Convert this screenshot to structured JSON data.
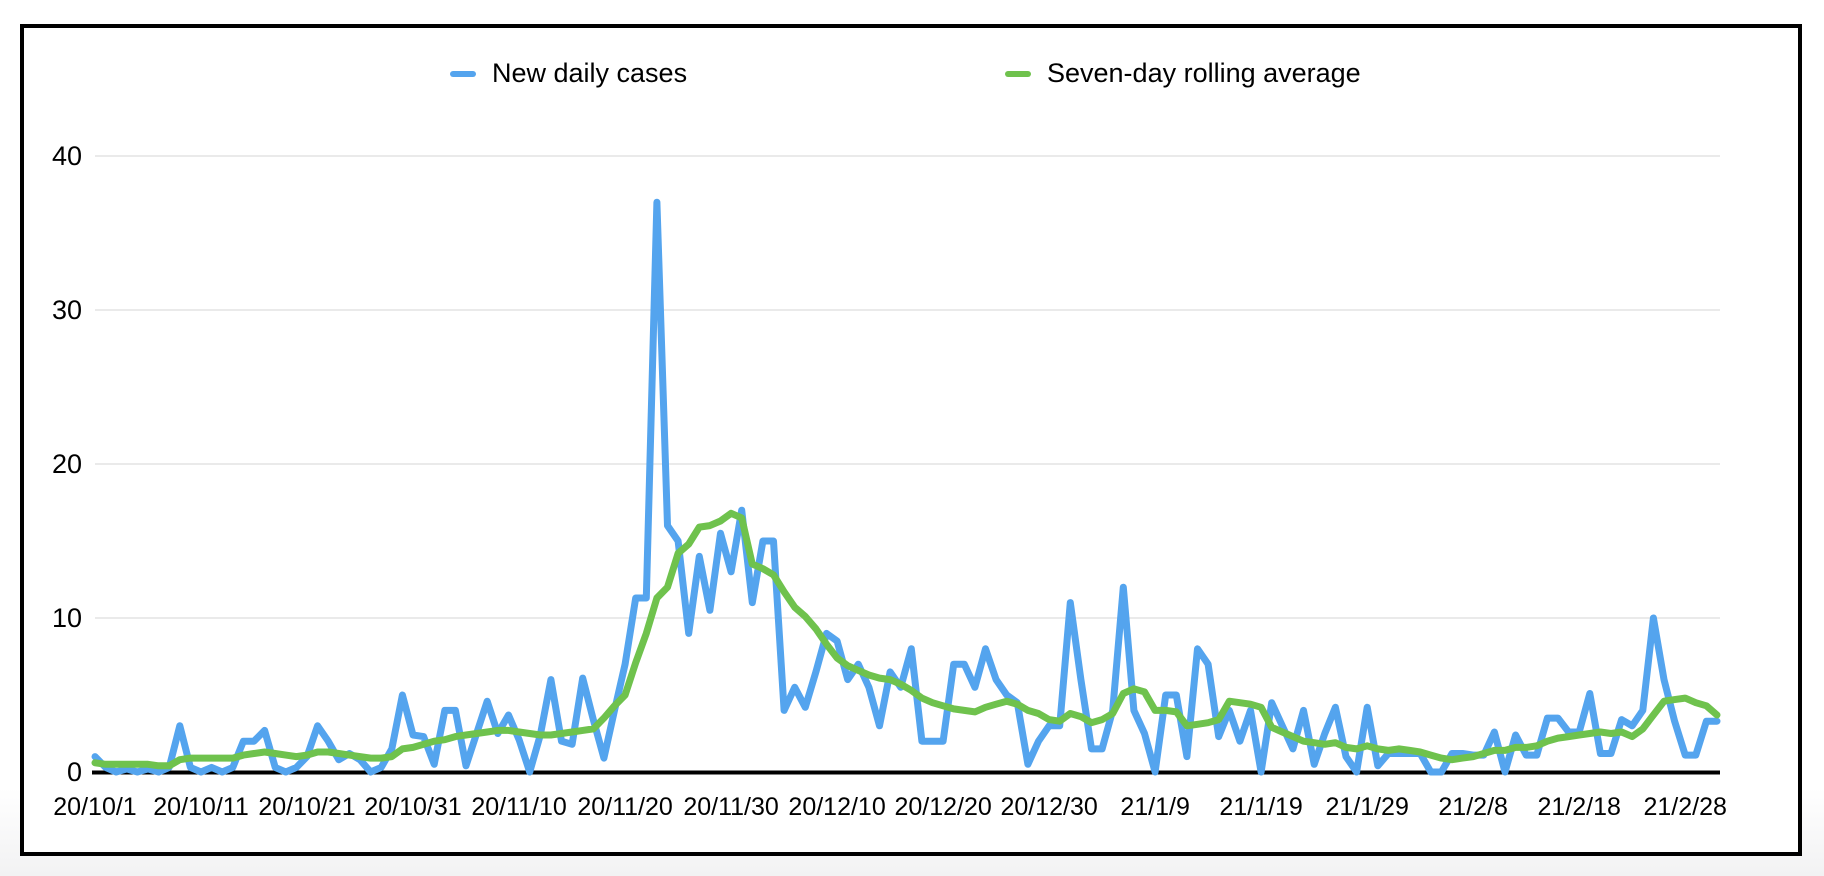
{
  "chart_data": {
    "type": "line",
    "title": "",
    "xlabel": "",
    "ylabel": "",
    "x_start": "20/10/1",
    "x_end": "21/3/3",
    "x_tick_every_days": 10,
    "x_tick_labels": [
      "20/10/1",
      "20/10/11",
      "20/10/21",
      "20/10/31",
      "20/11/10",
      "20/11/20",
      "20/11/30",
      "20/12/10",
      "20/12/20",
      "20/12/30",
      "21/1/9",
      "21/1/19",
      "21/1/29",
      "21/2/8",
      "21/2/18",
      "21/2/28"
    ],
    "y_ticks": [
      0,
      10,
      20,
      30,
      40
    ],
    "ylim": [
      0,
      43
    ],
    "grid": "horizontal",
    "legend_position": "top",
    "axis_color": "#000000",
    "gridline_color": "#e3e3e3",
    "series": [
      {
        "name": "New daily cases",
        "color": "#54a4ee",
        "values": [
          1,
          0.3,
          0,
          0.2,
          0,
          0.2,
          0,
          0.3,
          3,
          0.3,
          0,
          0.3,
          0,
          0.3,
          2,
          2,
          2.7,
          0.3,
          0,
          0.3,
          1,
          3,
          2,
          0.8,
          1.2,
          0.8,
          0,
          0.3,
          1.5,
          5,
          2.4,
          2.3,
          0.5,
          4,
          4,
          0.4,
          2.5,
          4.6,
          2.5,
          3.7,
          2.1,
          0,
          2.4,
          6,
          2,
          1.8,
          6.1,
          3.4,
          0.9,
          4,
          7,
          11.3,
          11.3,
          37,
          16,
          15,
          9,
          14,
          10.5,
          15.5,
          13,
          17,
          11,
          15,
          15,
          4,
          5.5,
          4.2,
          6.5,
          9,
          8.5,
          6,
          7,
          5.5,
          3,
          6.5,
          5.5,
          8,
          2,
          2,
          2,
          7,
          7,
          5.5,
          8,
          6,
          5,
          4.5,
          0.5,
          2,
          3,
          3,
          11,
          6,
          1.5,
          1.5,
          4,
          12,
          4,
          2.5,
          0,
          5,
          5,
          1,
          8,
          7,
          2.3,
          4,
          2,
          4,
          0,
          4.5,
          3,
          1.5,
          4,
          0.5,
          2.5,
          4.2,
          1,
          0,
          4.2,
          0.4,
          1.2,
          1.2,
          1.2,
          1.2,
          0,
          0,
          1.2,
          1.2,
          1.1,
          1.1,
          2.6,
          0,
          2.4,
          1.1,
          1.1,
          3.5,
          3.5,
          2.6,
          2.6,
          5.1,
          1.2,
          1.2,
          3.4,
          3,
          4,
          10,
          6,
          3.3,
          1.1,
          1.1,
          3.3,
          3.3
        ]
      },
      {
        "name": "Seven-day rolling average",
        "color": "#6fc24d",
        "values": [
          0.6,
          0.5,
          0.5,
          0.5,
          0.5,
          0.5,
          0.4,
          0.4,
          0.8,
          0.9,
          0.9,
          0.9,
          0.9,
          0.9,
          1.1,
          1.2,
          1.3,
          1.2,
          1.1,
          1.0,
          1.1,
          1.3,
          1.3,
          1.2,
          1.1,
          1.0,
          0.9,
          0.9,
          1.0,
          1.5,
          1.6,
          1.8,
          2.0,
          2.1,
          2.3,
          2.4,
          2.5,
          2.6,
          2.7,
          2.7,
          2.6,
          2.5,
          2.4,
          2.4,
          2.5,
          2.6,
          2.7,
          2.8,
          3.5,
          4.3,
          5.0,
          7.1,
          9.0,
          11.3,
          12.0,
          14.2,
          14.8,
          15.9,
          16.0,
          16.3,
          16.8,
          16.5,
          13.5,
          13.2,
          12.8,
          11.7,
          10.7,
          10.1,
          9.3,
          8.3,
          7.4,
          6.9,
          6.6,
          6.3,
          6.1,
          6.0,
          5.7,
          5.3,
          4.8,
          4.5,
          4.3,
          4.1,
          4.0,
          3.9,
          4.2,
          4.4,
          4.6,
          4.4,
          4.0,
          3.8,
          3.4,
          3.3,
          3.8,
          3.6,
          3.2,
          3.4,
          3.8,
          5.1,
          5.4,
          5.2,
          4.0,
          4.0,
          3.9,
          3.0,
          3.1,
          3.2,
          3.4,
          4.6,
          4.5,
          4.4,
          4.2,
          2.9,
          2.6,
          2.3,
          2.0,
          1.9,
          1.8,
          1.9,
          1.6,
          1.5,
          1.7,
          1.5,
          1.4,
          1.5,
          1.4,
          1.3,
          1.1,
          0.9,
          0.8,
          0.9,
          1.0,
          1.2,
          1.4,
          1.4,
          1.6,
          1.6,
          1.7,
          2.0,
          2.2,
          2.3,
          2.4,
          2.5,
          2.6,
          2.5,
          2.6,
          2.3,
          2.8,
          3.7,
          4.6,
          4.7,
          4.8,
          4.5,
          4.3,
          3.7
        ]
      }
    ]
  }
}
